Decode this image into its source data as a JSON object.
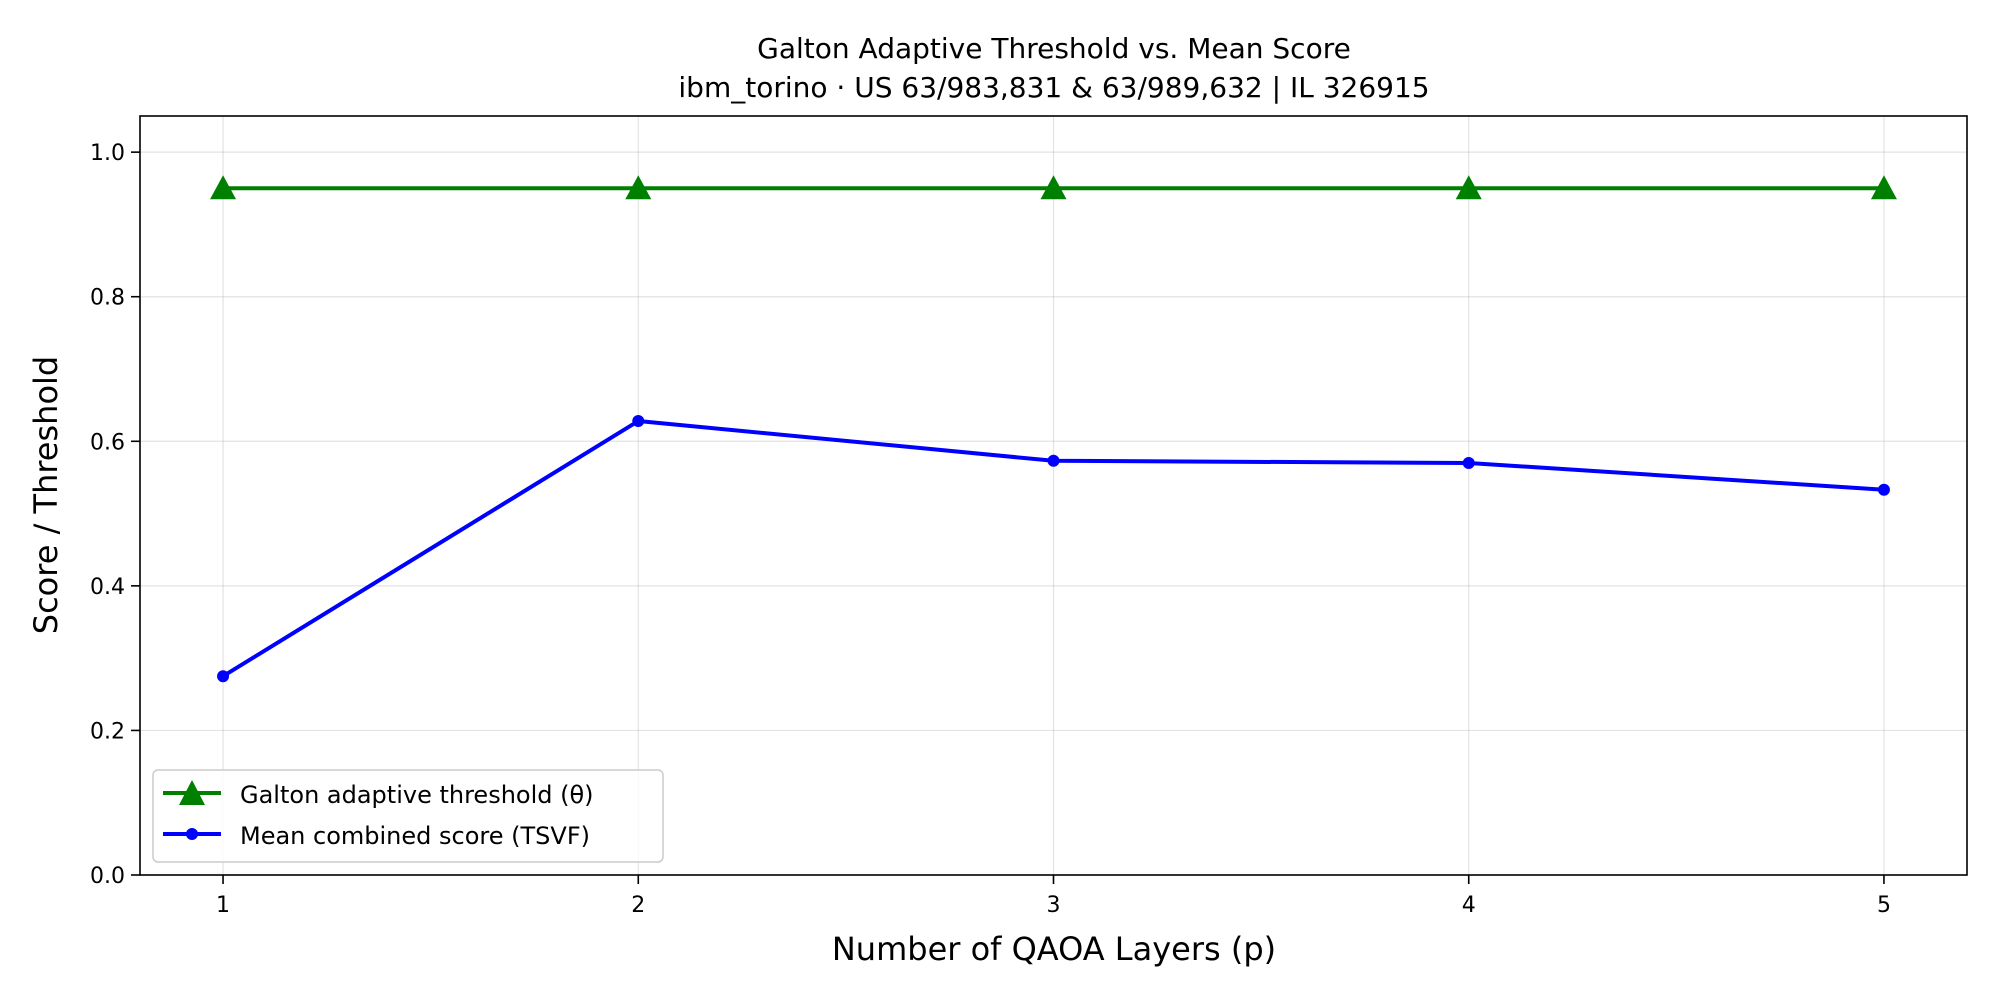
{
  "chart_data": {
    "type": "line",
    "title": "Galton Adaptive Threshold vs. Mean Score",
    "subtitle": "ibm_torino · US 63/983,831 & 63/989,632 | IL 326915",
    "xlabel": "Number of QAOA Layers (p)",
    "ylabel": "Score / Threshold",
    "x": [
      1,
      2,
      3,
      4,
      5
    ],
    "xlim": [
      0.8,
      5.2
    ],
    "ylim": [
      0.0,
      1.05
    ],
    "xticks": [
      "1",
      "2",
      "3",
      "4",
      "5"
    ],
    "yticks": [
      "0.0",
      "0.2",
      "0.4",
      "0.6",
      "0.8",
      "1.0"
    ],
    "grid": true,
    "legend_position": "lower-left",
    "series": [
      {
        "name": "Galton adaptive threshold (θ)",
        "values": [
          0.95,
          0.95,
          0.95,
          0.95,
          0.95
        ],
        "color": "#008000",
        "marker": "triangle"
      },
      {
        "name": "Mean combined score (TSVF)",
        "values": [
          0.275,
          0.628,
          0.573,
          0.57,
          0.533
        ],
        "color": "#0000ff",
        "marker": "circle"
      }
    ]
  }
}
